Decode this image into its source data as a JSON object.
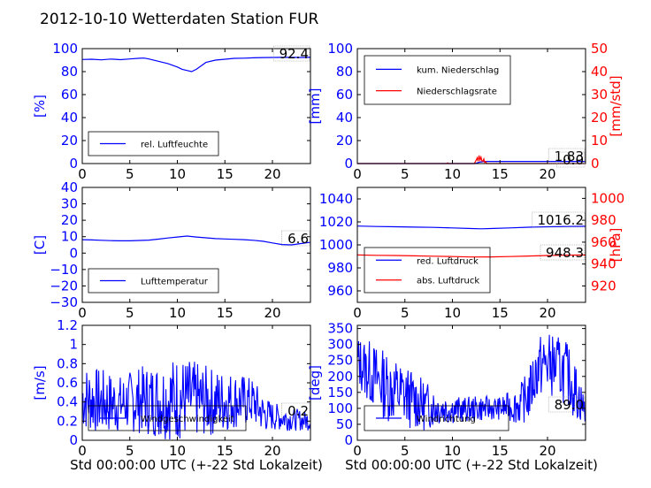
{
  "title": "2012-10-10 Wetterdaten Station FUR",
  "colors": {
    "blue": "#0000ff",
    "red": "#ff0000",
    "axis": "#000000"
  },
  "chart_data": [
    {
      "id": "humidity",
      "type": "line",
      "ylabel": "[%]",
      "ylim": [
        0,
        100
      ],
      "xlim": [
        0,
        24
      ],
      "xticks": [
        0,
        5,
        10,
        15,
        20
      ],
      "yticks": [
        0,
        20,
        40,
        60,
        80,
        100
      ],
      "legend": [
        "rel. Luftfeuchte"
      ],
      "annotation": "92.4",
      "series": [
        {
          "name": "rel. Luftfeuchte",
          "color": "#0000ff",
          "x": [
            0,
            1,
            2,
            3,
            4,
            5,
            6,
            6.5,
            7,
            8,
            9,
            10,
            10.5,
            11,
            11.5,
            12,
            12.5,
            13,
            14,
            15,
            16,
            17,
            18,
            19,
            20,
            21,
            22,
            23,
            24
          ],
          "y": [
            90.5,
            90.8,
            90.2,
            90.9,
            90.4,
            91,
            91.6,
            91.8,
            91,
            89,
            87,
            84,
            82,
            81,
            80,
            82,
            85,
            88,
            90,
            90.8,
            91.5,
            91.7,
            92,
            92.2,
            92.3,
            92.4,
            92.4,
            92.3,
            92.4
          ]
        }
      ]
    },
    {
      "id": "rain",
      "type": "line",
      "ylabel": "[mm]",
      "ylabel2": "[mm/std]",
      "ylim": [
        0,
        100
      ],
      "ylim2": [
        0,
        50
      ],
      "xlim": [
        0,
        24
      ],
      "xticks": [
        0,
        5,
        10,
        15,
        20
      ],
      "yticks": [
        0,
        20,
        40,
        60,
        80,
        100
      ],
      "yticks2": [
        0,
        10,
        20,
        30,
        40,
        50
      ],
      "legend": [
        "kum. Niederschlag",
        "Niederschlagsrate"
      ],
      "annotation": "1.83",
      "annotation2": "0.0",
      "series": [
        {
          "name": "kum. Niederschlag",
          "color": "#0000ff",
          "axis": 1,
          "x": [
            0,
            12.4,
            12.6,
            12.8,
            13,
            13.3,
            24
          ],
          "y": [
            0,
            0,
            0.6,
            1.1,
            1.5,
            1.83,
            1.83
          ]
        },
        {
          "name": "Niederschlagsrate",
          "color": "#ff0000",
          "axis": 2,
          "x": [
            0,
            9.4,
            9.5,
            9.6,
            12.3,
            12.5,
            12.6,
            12.7,
            12.8,
            12.9,
            13.0,
            13.1,
            13.2,
            13.3,
            13.4,
            13.5,
            13.6,
            24
          ],
          "y": [
            0,
            0,
            0.3,
            0,
            0,
            1.5,
            2.5,
            1.0,
            3.5,
            1.5,
            2.8,
            1.2,
            1.0,
            2.0,
            0.5,
            0.8,
            0,
            0
          ]
        }
      ]
    },
    {
      "id": "temperature",
      "type": "line",
      "ylabel": "[C]",
      "ylim": [
        -30,
        40
      ],
      "xlim": [
        0,
        24
      ],
      "xticks": [
        0,
        5,
        10,
        15,
        20
      ],
      "yticks": [
        -30,
        -20,
        -10,
        0,
        10,
        20,
        30,
        40
      ],
      "legend": [
        "Lufttemperatur"
      ],
      "annotation": "6.6",
      "series": [
        {
          "name": "Lufttemperatur",
          "color": "#0000ff",
          "x": [
            0,
            1,
            2,
            3,
            4,
            5,
            6,
            7,
            8,
            9,
            10,
            11,
            12,
            13,
            14,
            15,
            16,
            17,
            18,
            19,
            20,
            21,
            22,
            23,
            24
          ],
          "y": [
            8.2,
            8.0,
            7.8,
            7.6,
            7.5,
            7.5,
            7.7,
            7.9,
            8.5,
            9.2,
            9.8,
            10.4,
            9.8,
            9.3,
            8.8,
            8.6,
            8.4,
            8.2,
            7.8,
            7.2,
            6.2,
            5.2,
            5.0,
            5.8,
            6.6
          ]
        }
      ]
    },
    {
      "id": "pressure",
      "type": "line",
      "ylabel2": "[hPa]",
      "ylim": [
        950,
        1050
      ],
      "ylim2": [
        905,
        1010
      ],
      "xlim": [
        0,
        24
      ],
      "xticks": [
        0,
        5,
        10,
        15,
        20
      ],
      "yticks": [
        960,
        980,
        1000,
        1020,
        1040
      ],
      "yticks2": [
        920,
        940,
        960,
        980,
        1000
      ],
      "legend": [
        "red. Luftdruck",
        "abs. Luftdruck"
      ],
      "annotation": "1016.2",
      "annotation2": "948.3",
      "series": [
        {
          "name": "red. Luftdruck",
          "color": "#0000ff",
          "axis": 1,
          "x": [
            0,
            2,
            4,
            6,
            8,
            10,
            12,
            13,
            14,
            16,
            18,
            20,
            22,
            24
          ],
          "y": [
            1016.4,
            1016,
            1015.8,
            1015.5,
            1015.2,
            1014.8,
            1014.2,
            1014.0,
            1014.2,
            1014.8,
            1015.4,
            1015.8,
            1016.0,
            1016.2
          ]
        },
        {
          "name": "abs. Luftdruck",
          "color": "#ff0000",
          "axis": 2,
          "x": [
            0,
            2,
            4,
            6,
            8,
            10,
            12,
            14,
            16,
            18,
            20,
            22,
            24
          ],
          "y": [
            948.3,
            948.0,
            947.8,
            947.5,
            947.2,
            946.8,
            946.4,
            946.5,
            946.8,
            947.3,
            947.8,
            948.1,
            948.3
          ]
        }
      ]
    },
    {
      "id": "wind",
      "type": "line",
      "ylabel": "[m/s]",
      "ylim": [
        0,
        1.2
      ],
      "xlim": [
        0,
        24
      ],
      "xticks": [
        0,
        5,
        10,
        15,
        20
      ],
      "yticks": [
        0.0,
        0.2,
        0.4,
        0.6,
        0.8,
        1.0,
        1.2
      ],
      "legend": [
        "Windgeschwindigkeit"
      ],
      "annotation": "0.2",
      "seed": 7,
      "series": [
        {
          "name": "Windgeschwindigkeit",
          "color": "#0000ff",
          "x": [
            0,
            2,
            4,
            6,
            8,
            10,
            12,
            14,
            16,
            18,
            19,
            20,
            22,
            24
          ],
          "y": [
            0.45,
            0.4,
            0.38,
            0.42,
            0.42,
            0.44,
            0.42,
            0.4,
            0.42,
            0.4,
            0.28,
            0.25,
            0.22,
            0.2
          ],
          "spread": [
            0.35,
            0.35,
            0.3,
            0.35,
            0.4,
            0.45,
            0.4,
            0.35,
            0.3,
            0.25,
            0.2,
            0.15,
            0.12,
            0.1
          ]
        }
      ]
    },
    {
      "id": "winddir",
      "type": "line",
      "ylabel": "[deg]",
      "ylim": [
        0,
        360
      ],
      "xlim": [
        0,
        24
      ],
      "xticks": [
        0,
        5,
        10,
        15,
        20
      ],
      "yticks": [
        0,
        50,
        100,
        150,
        200,
        250,
        300,
        350
      ],
      "legend": [
        "Windrichtung"
      ],
      "annotation": "89.0",
      "seed": 13,
      "series": [
        {
          "name": "Windrichtung",
          "color": "#0000ff",
          "x": [
            0,
            1,
            3,
            5,
            7,
            9,
            11,
            13,
            15,
            17,
            18,
            19,
            20,
            21,
            22,
            23,
            24
          ],
          "y": [
            250,
            220,
            170,
            140,
            110,
            100,
            95,
            100,
            100,
            110,
            140,
            230,
            240,
            230,
            210,
            150,
            90
          ],
          "spread": [
            80,
            100,
            110,
            100,
            80,
            50,
            40,
            40,
            35,
            60,
            80,
            100,
            100,
            100,
            100,
            90,
            40
          ]
        }
      ]
    }
  ],
  "xlabel": "Std 00:00:00 UTC (+-22 Std Lokalzeit)"
}
